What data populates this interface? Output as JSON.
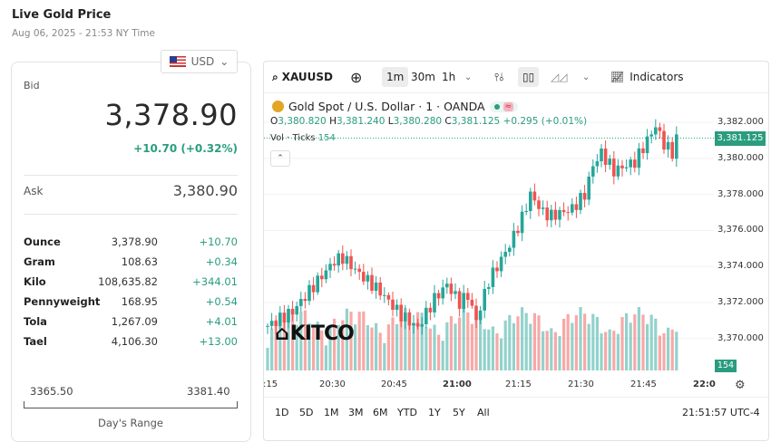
{
  "header": {
    "title": "Live Gold Price",
    "subtitle": "Aug 06, 2025 - 21:53 NY Time"
  },
  "currency": {
    "selected": "USD",
    "icon": "us-flag-icon"
  },
  "bid": {
    "label": "Bid",
    "value": "3,378.90",
    "change": "+10.70 (+0.32%)"
  },
  "ask": {
    "label": "Ask",
    "value": "3,380.90"
  },
  "units": [
    {
      "name": "Ounce",
      "value": "3,378.90",
      "change": "+10.70"
    },
    {
      "name": "Gram",
      "value": "108.63",
      "change": "+0.34"
    },
    {
      "name": "Kilo",
      "value": "108,635.82",
      "change": "+344.01"
    },
    {
      "name": "Pennyweight",
      "value": "168.95",
      "change": "+0.54"
    },
    {
      "name": "Tola",
      "value": "1,267.09",
      "change": "+4.01"
    },
    {
      "name": "Tael",
      "value": "4,106.30",
      "change": "+13.00"
    }
  ],
  "range": {
    "low": "3365.50",
    "high": "3381.40",
    "label": "Day's Range"
  },
  "toolbar": {
    "symbol": "XAUUSD",
    "intervals": [
      "1m",
      "30m",
      "1h"
    ],
    "selected_interval": "1m",
    "indicators": "Indicators"
  },
  "chart": {
    "title": "Gold Spot / U.S. Dollar · 1 · OANDA",
    "ohlc": {
      "o_label": "O",
      "o": "3,380.820",
      "h_label": "H",
      "h": "3,381.240",
      "l_label": "L",
      "l": "3,380.280",
      "c_label": "C",
      "c": "3,381.125",
      "change": "+0.295 (+0.01%)"
    },
    "vol_label": "Vol · Ticks",
    "vol_value": "154",
    "collapse": "⌃",
    "price_ticks": [
      "3,382.000",
      "3,380.000",
      "3,378.000",
      "3,376.000",
      "3,374.000",
      "3,372.000",
      "3,370.000"
    ],
    "last_price": "3,381.125",
    "last_volume": "154",
    "time_ticks": [
      ":15",
      "20:30",
      "20:45",
      "21:00",
      "21:15",
      "21:30",
      "21:45",
      "22:0"
    ],
    "watermark": "KITCO",
    "up_color": "#26a69a",
    "down_color": "#ef5350",
    "price_keypoints": [
      [
        0,
        3370.7
      ],
      [
        6,
        3371.5
      ],
      [
        12,
        3373.2
      ],
      [
        16,
        3374.3
      ],
      [
        18,
        3374.5
      ],
      [
        22,
        3373.6
      ],
      [
        27,
        3372.6
      ],
      [
        32,
        3371.3
      ],
      [
        36,
        3370.6
      ],
      [
        40,
        3372.2
      ],
      [
        43,
        3373.0
      ],
      [
        46,
        3372.0
      ],
      [
        48,
        3372.4
      ],
      [
        50,
        3371.0
      ],
      [
        53,
        3373.2
      ],
      [
        58,
        3375.2
      ],
      [
        61,
        3376.7
      ],
      [
        63,
        3378.0
      ],
      [
        66,
        3377.0
      ],
      [
        68,
        3376.8
      ],
      [
        73,
        3377.2
      ],
      [
        76,
        3378.0
      ],
      [
        78,
        3379.6
      ],
      [
        80,
        3380.3
      ],
      [
        83,
        3379.3
      ],
      [
        88,
        3379.8
      ],
      [
        91,
        3381.0
      ],
      [
        93,
        3381.8
      ],
      [
        95,
        3380.8
      ],
      [
        97,
        3380.3
      ],
      [
        98,
        3381.1
      ]
    ]
  },
  "range_buttons": [
    "1D",
    "5D",
    "1M",
    "3M",
    "6M",
    "YTD",
    "1Y",
    "5Y",
    "All"
  ],
  "clock": "21:51:57 UTC-4"
}
